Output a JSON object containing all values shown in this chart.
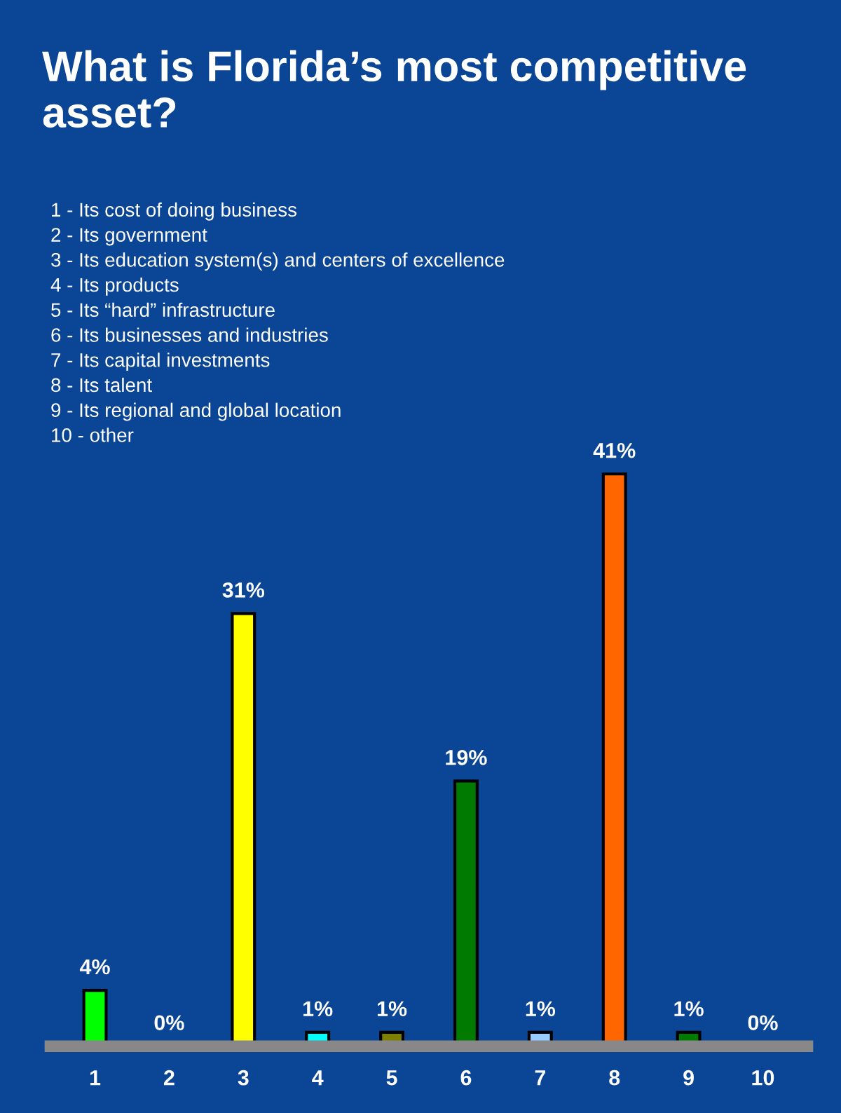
{
  "chart_data": {
    "type": "bar",
    "title": "What is Florida’s most competitive asset?",
    "categories": [
      "1",
      "2",
      "3",
      "4",
      "5",
      "6",
      "7",
      "8",
      "9",
      "10"
    ],
    "values": [
      4,
      0,
      31,
      1,
      1,
      19,
      1,
      41,
      1,
      0
    ],
    "colors": [
      "#00ff00",
      "#cc0000",
      "#ffff00",
      "#00ffff",
      "#808000",
      "#007a00",
      "#99ccff",
      "#ff6600",
      "#007a00",
      "#cc99ff"
    ],
    "value_labels": [
      "4%",
      "0%",
      "31%",
      "1%",
      "1%",
      "19%",
      "1%",
      "41%",
      "1%",
      "0%"
    ],
    "annotations": [
      "1 - Its cost of doing business",
      "2 - Its government",
      "3 - Its education system(s) and centers of excellence",
      "4 - Its products",
      "5 - Its “hard” infrastructure",
      "6 - Its businesses and industries",
      "7 - Its capital investments",
      "8 - Its talent",
      "9 - Its regional and global location",
      "10 - other"
    ],
    "grid": false,
    "legend": false
  }
}
